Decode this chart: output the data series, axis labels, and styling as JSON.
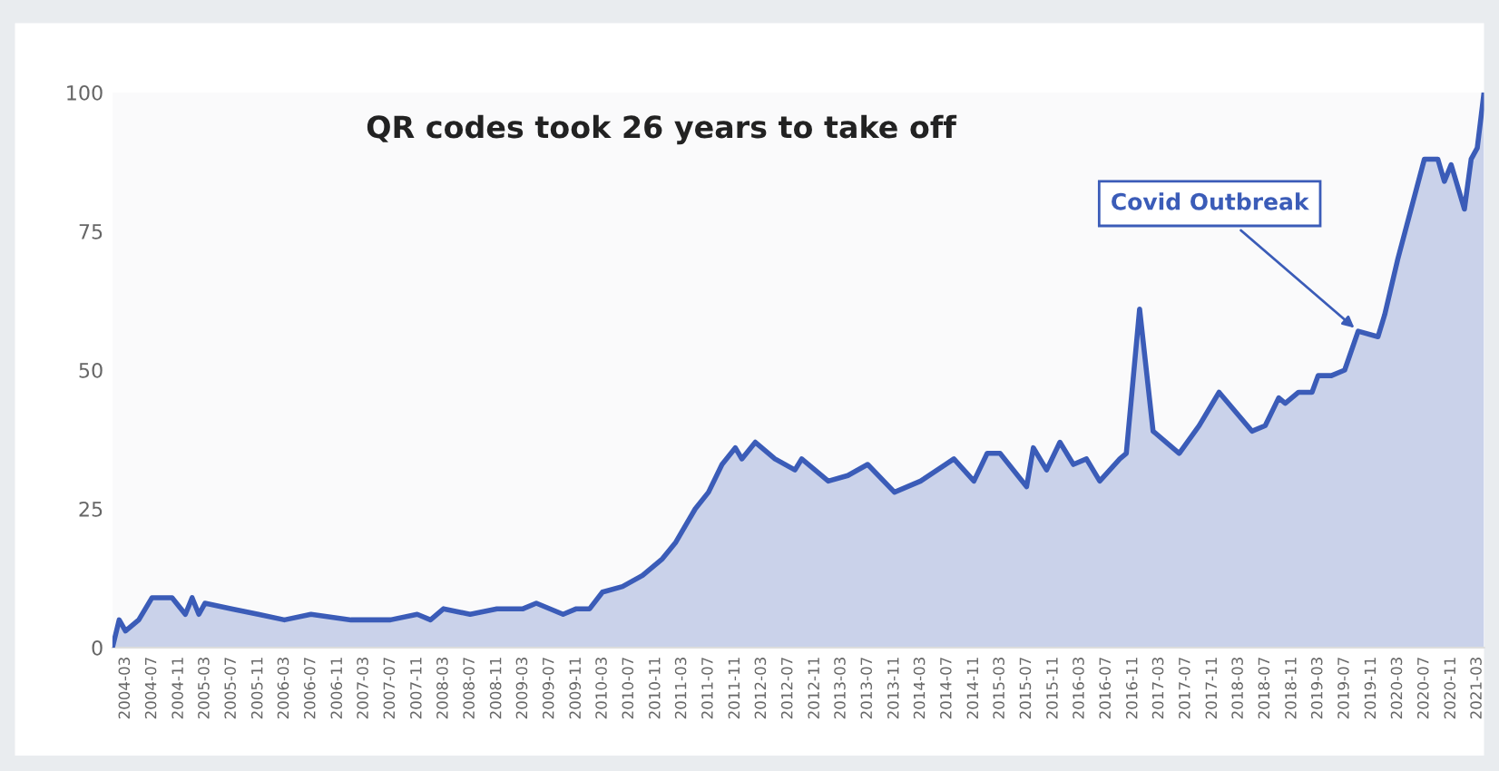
{
  "chart_data": {
    "type": "area",
    "title": "QR codes took 26 years to take off",
    "x": [
      "2004-01",
      "2004-02",
      "2004-03",
      "2004-05",
      "2004-07",
      "2004-10",
      "2004-12",
      "2005-01",
      "2005-02",
      "2005-03",
      "2005-07",
      "2005-11",
      "2006-03",
      "2006-07",
      "2007-01",
      "2007-07",
      "2007-11",
      "2008-01",
      "2008-03",
      "2008-07",
      "2008-11",
      "2009-03",
      "2009-05",
      "2009-09",
      "2009-11",
      "2010-01",
      "2010-03",
      "2010-06",
      "2010-09",
      "2010-12",
      "2011-02",
      "2011-05",
      "2011-07",
      "2011-09",
      "2011-11",
      "2011-12",
      "2012-02",
      "2012-05",
      "2012-08",
      "2012-09",
      "2013-01",
      "2013-04",
      "2013-07",
      "2013-11",
      "2014-03",
      "2014-08",
      "2014-11",
      "2015-01",
      "2015-03",
      "2015-07",
      "2015-08",
      "2015-10",
      "2015-12",
      "2016-02",
      "2016-04",
      "2016-06",
      "2016-09",
      "2016-10",
      "2016-12",
      "2017-02",
      "2017-06",
      "2017-09",
      "2017-12",
      "2018-05",
      "2018-07",
      "2018-09",
      "2018-10",
      "2018-12",
      "2019-02",
      "2019-03",
      "2019-05",
      "2019-07",
      "2019-09",
      "2019-12",
      "2020-01",
      "2020-03",
      "2020-05",
      "2020-07",
      "2020-09",
      "2020-10",
      "2020-11",
      "2021-01",
      "2021-02",
      "2021-03",
      "2021-04"
    ],
    "series": [
      {
        "color": "#3b5cb8",
        "values": [
          0,
          5,
          3,
          5,
          9,
          9,
          6,
          9,
          6,
          8,
          7,
          6,
          5,
          6,
          5,
          5,
          6,
          5,
          7,
          6,
          7,
          7,
          8,
          6,
          7,
          7,
          10,
          11,
          13,
          16,
          19,
          25,
          28,
          33,
          36,
          34,
          37,
          34,
          32,
          34,
          30,
          31,
          33,
          28,
          30,
          34,
          30,
          35,
          35,
          29,
          36,
          32,
          37,
          33,
          34,
          30,
          34,
          35,
          61,
          39,
          35,
          40,
          46,
          39,
          40,
          45,
          44,
          46,
          46,
          49,
          49,
          50,
          57,
          56,
          60,
          70,
          79,
          88,
          88,
          84,
          87,
          79,
          88,
          90,
          100
        ]
      }
    ],
    "xlim": [
      "2004-01",
      "2021-04"
    ],
    "xticks": [
      {
        "value": "2004-03",
        "label": "2004-03"
      },
      {
        "value": "2004-07",
        "label": "2004-07"
      },
      {
        "value": "2004-11",
        "label": "2004-11"
      },
      {
        "value": "2005-03",
        "label": "2005-03"
      },
      {
        "value": "2005-07",
        "label": "2005-07"
      },
      {
        "value": "2005-11",
        "label": "2005-11"
      },
      {
        "value": "2006-03",
        "label": "2006-03"
      },
      {
        "value": "2006-07",
        "label": "2006-07"
      },
      {
        "value": "2006-11",
        "label": "2006-11"
      },
      {
        "value": "2007-03",
        "label": "2007-03"
      },
      {
        "value": "2007-07",
        "label": "2007-07"
      },
      {
        "value": "2007-11",
        "label": "2007-11"
      },
      {
        "value": "2008-03",
        "label": "2008-03"
      },
      {
        "value": "2008-07",
        "label": "2008-07"
      },
      {
        "value": "2008-11",
        "label": "2008-11"
      },
      {
        "value": "2009-03",
        "label": "2009-03"
      },
      {
        "value": "2009-07",
        "label": "2009-07"
      },
      {
        "value": "2009-11",
        "label": "2009-11"
      },
      {
        "value": "2010-03",
        "label": "2010-03"
      },
      {
        "value": "2010-07",
        "label": "2010-07"
      },
      {
        "value": "2010-11",
        "label": "2010-11"
      },
      {
        "value": "2011-03",
        "label": "2011-03"
      },
      {
        "value": "2011-07",
        "label": "2011-07"
      },
      {
        "value": "2011-11",
        "label": "2011-11"
      },
      {
        "value": "2012-03",
        "label": "2012-03"
      },
      {
        "value": "2012-07",
        "label": "2012-07"
      },
      {
        "value": "2012-11",
        "label": "2012-11"
      },
      {
        "value": "2013-03",
        "label": "2013-03"
      },
      {
        "value": "2013-07",
        "label": "2013-07"
      },
      {
        "value": "2013-11",
        "label": "2013-11"
      },
      {
        "value": "2014-03",
        "label": "2014-03"
      },
      {
        "value": "2014-07",
        "label": "2014-07"
      },
      {
        "value": "2014-11",
        "label": "2014-11"
      },
      {
        "value": "2015-03",
        "label": "2015-03"
      },
      {
        "value": "2015-07",
        "label": "2015-07"
      },
      {
        "value": "2015-11",
        "label": "2015-11"
      },
      {
        "value": "2016-03",
        "label": "2016-03"
      },
      {
        "value": "2016-07",
        "label": "2016-07"
      },
      {
        "value": "2016-11",
        "label": "2016-11"
      },
      {
        "value": "2017-03",
        "label": "2017-03"
      },
      {
        "value": "2017-07",
        "label": "2017-07"
      },
      {
        "value": "2017-11",
        "label": "2017-11"
      },
      {
        "value": "2018-03",
        "label": "2018-03"
      },
      {
        "value": "2018-07",
        "label": "2018-07"
      },
      {
        "value": "2018-11",
        "label": "2018-11"
      },
      {
        "value": "2019-03",
        "label": "2019-03"
      },
      {
        "value": "2019-07",
        "label": "2019-07"
      },
      {
        "value": "2019-11",
        "label": "2019-11"
      },
      {
        "value": "2020-03",
        "label": "2020-03"
      },
      {
        "value": "2020-07",
        "label": "2020-07"
      },
      {
        "value": "2020-11",
        "label": "2020-11"
      },
      {
        "value": "2021-03",
        "label": "2021-03"
      }
    ],
    "ylim": [
      0,
      100
    ],
    "yticks": [
      0,
      25,
      50,
      75,
      100
    ],
    "grid": false,
    "legend": false,
    "annotations": [
      {
        "text": "Covid Outbreak",
        "x": "2019-09",
        "y": 57
      }
    ]
  }
}
